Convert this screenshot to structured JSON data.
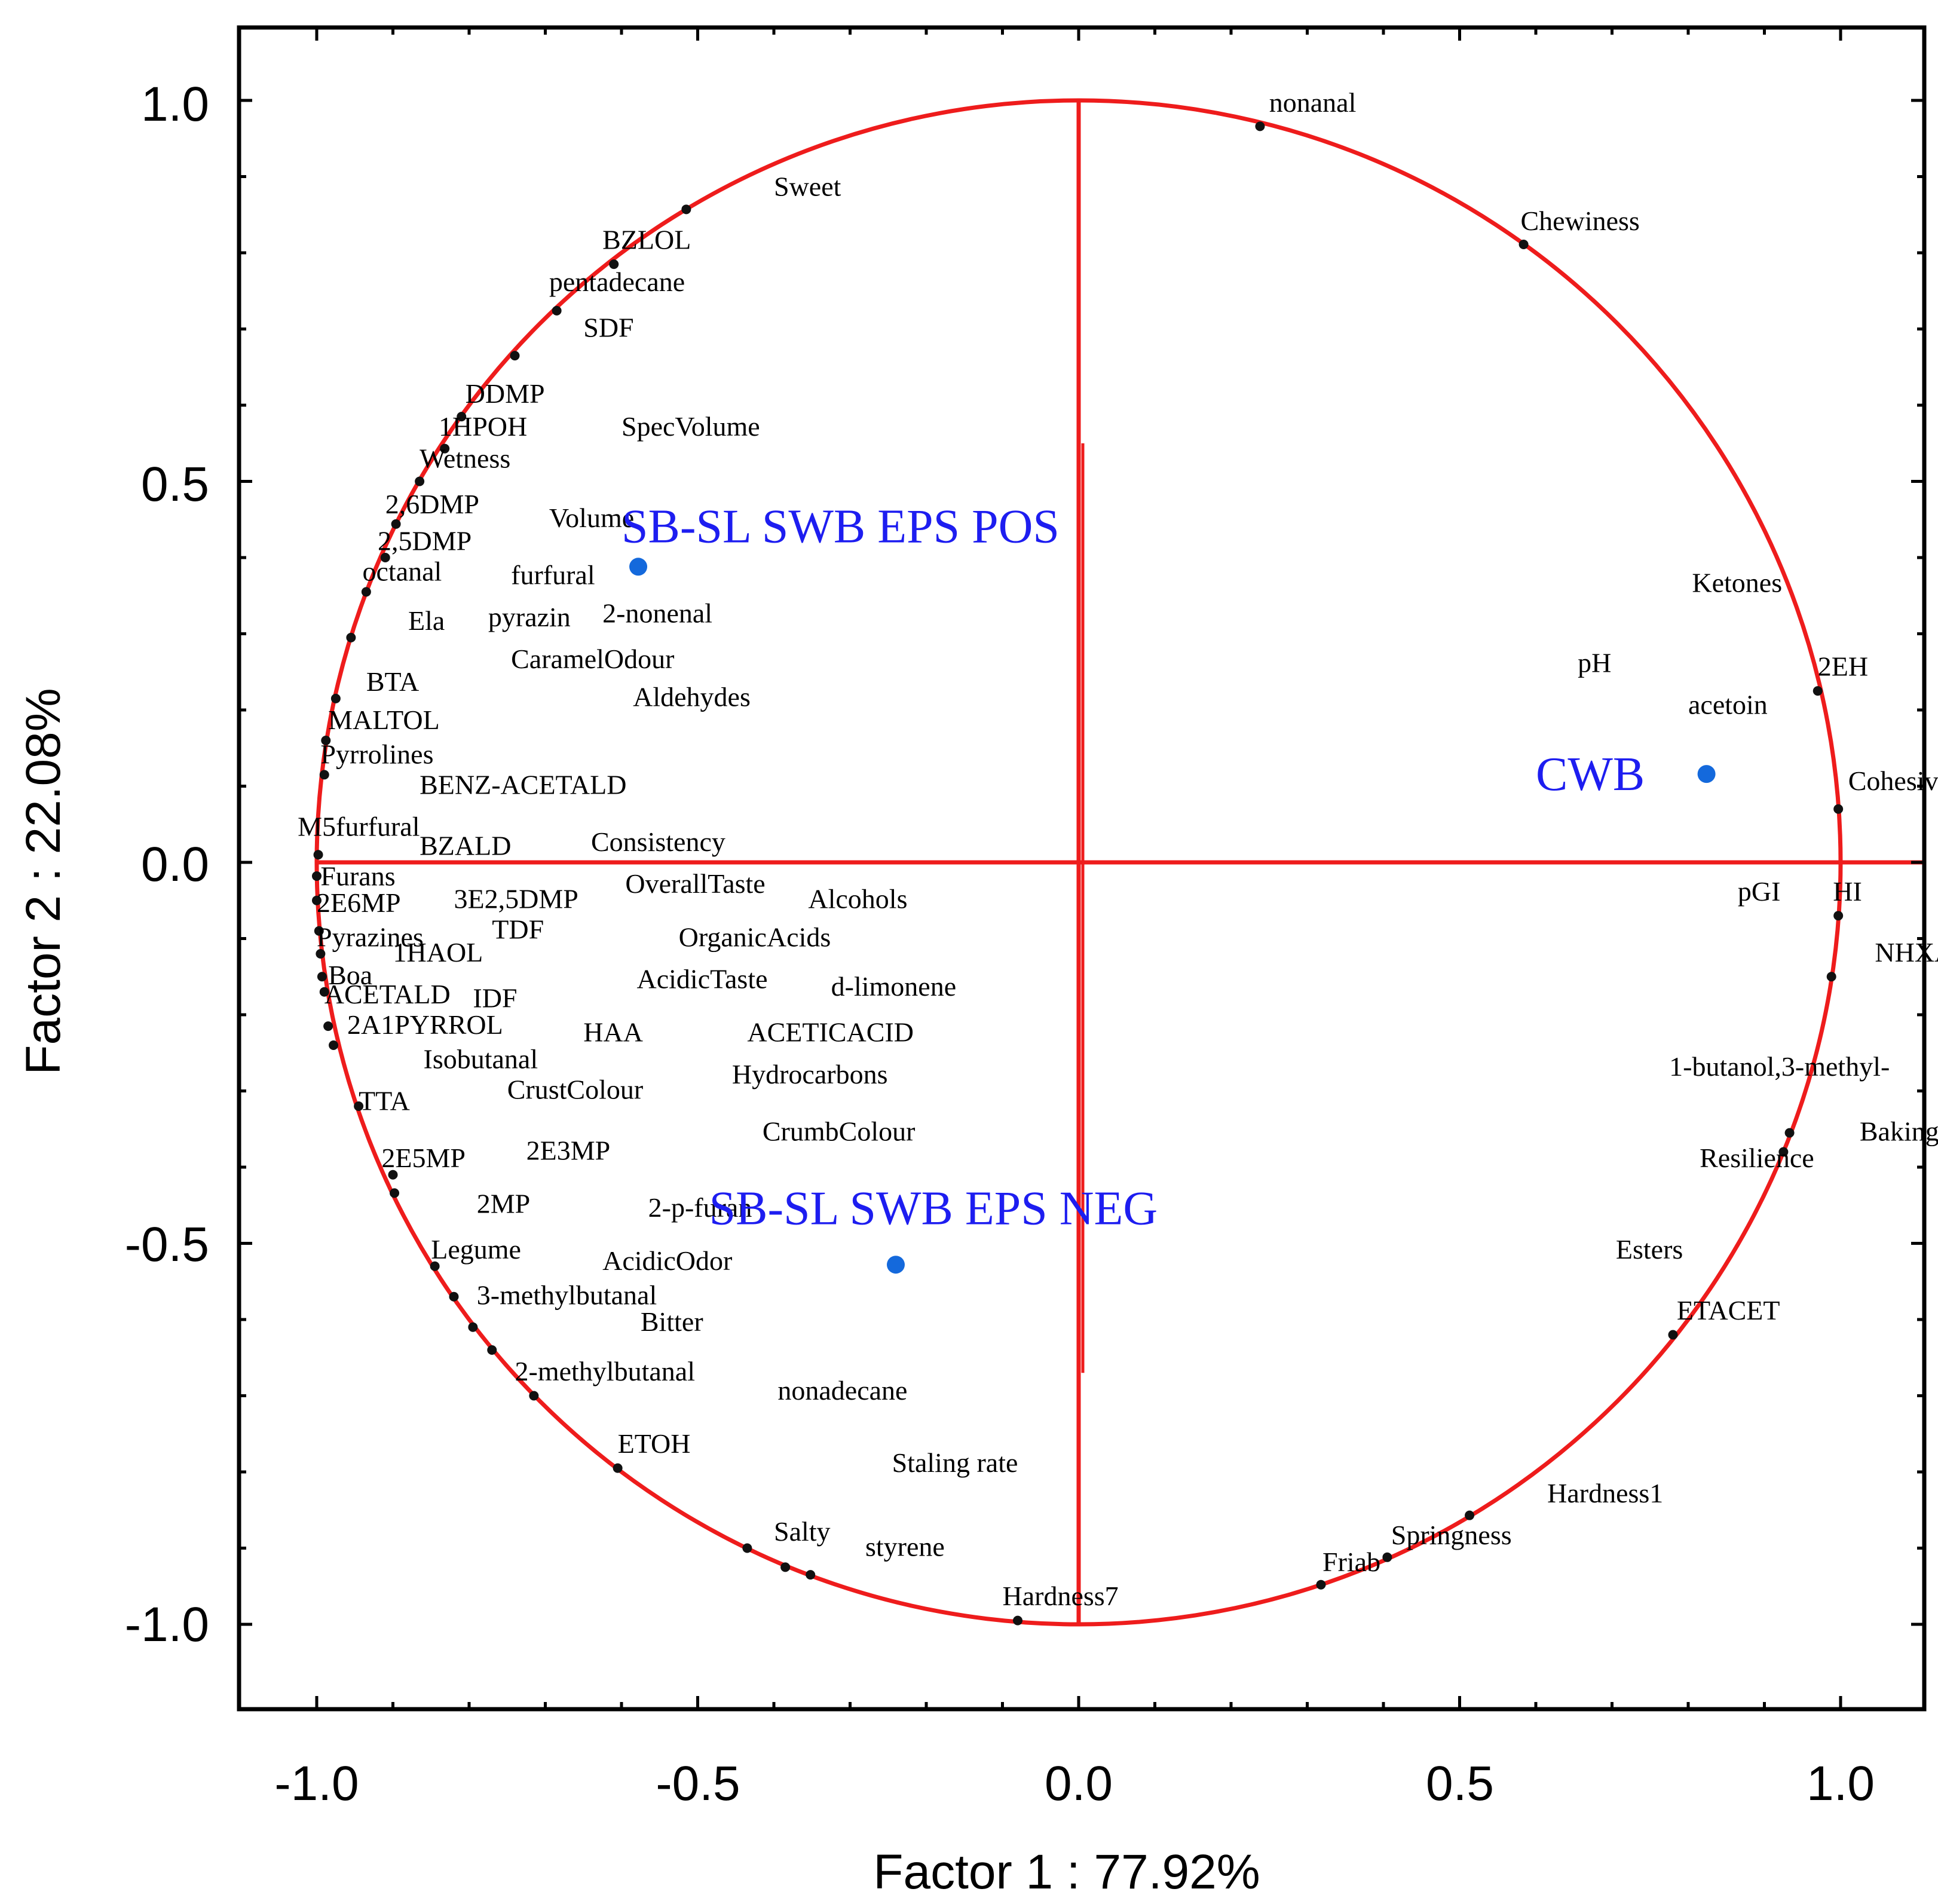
{
  "chart_data": {
    "type": "scatter",
    "title": "",
    "xlabel": "Factor 1 : 77.92%",
    "ylabel": "Factor 2 : 22.08%",
    "xlim": [
      -1.1,
      1.1
    ],
    "ylim": [
      -1.1,
      1.1
    ],
    "x_ticks": [
      "-1.0",
      "-0.5",
      "0.0",
      "0.5",
      "1.0"
    ],
    "y_ticks": [
      "1.0",
      "0.5",
      "0.0",
      "-0.5",
      "-1.0"
    ],
    "colors": {
      "circle": "#ee1c1c",
      "group": "#1469dc",
      "frame": "#000000",
      "text": "#000000",
      "group_text": "#1d1df0"
    },
    "variables": [
      {
        "name": "nonanal",
        "x": 0.238,
        "y": 0.966,
        "lx": 0.25,
        "ly": 0.985
      },
      {
        "name": "Sweet",
        "x": -0.515,
        "y": 0.857,
        "lx": -0.4,
        "ly": 0.875
      },
      {
        "name": "Chewiness",
        "x": 0.584,
        "y": 0.811,
        "lx": 0.58,
        "ly": 0.83
      },
      {
        "name": "BZLOL",
        "x": -0.61,
        "y": 0.785,
        "lx": -0.625,
        "ly": 0.805
      },
      {
        "name": "pentadecane",
        "x": -0.685,
        "y": 0.724,
        "lx": -0.695,
        "ly": 0.75
      },
      {
        "name": "SDF",
        "x": -0.74,
        "y": 0.665,
        "lx": -0.65,
        "ly": 0.69
      },
      {
        "name": "DDMP",
        "x": -0.81,
        "y": 0.585,
        "lx": -0.805,
        "ly": 0.603
      },
      {
        "name": "1HPOH",
        "x": -0.832,
        "y": 0.543,
        "lx": -0.84,
        "ly": 0.56
      },
      {
        "name": "SpecVolume",
        "x": null,
        "y": null,
        "lx": -0.6,
        "ly": 0.56
      },
      {
        "name": "Wetness",
        "x": -0.865,
        "y": 0.5,
        "lx": -0.865,
        "ly": 0.518
      },
      {
        "name": "2,6DMP",
        "x": -0.896,
        "y": 0.444,
        "lx": -0.91,
        "ly": 0.458
      },
      {
        "name": "Volume",
        "x": null,
        "y": null,
        "lx": -0.695,
        "ly": 0.44
      },
      {
        "name": "2,5DMP",
        "x": -0.91,
        "y": 0.4,
        "lx": -0.92,
        "ly": 0.41
      },
      {
        "name": "octanal",
        "x": -0.935,
        "y": 0.355,
        "lx": -0.94,
        "ly": 0.37
      },
      {
        "name": "furfural",
        "x": null,
        "y": null,
        "lx": -0.745,
        "ly": 0.365
      },
      {
        "name": "Ela",
        "x": -0.955,
        "y": 0.295,
        "lx": -0.88,
        "ly": 0.305
      },
      {
        "name": "pyrazin",
        "x": null,
        "y": null,
        "lx": -0.775,
        "ly": 0.31
      },
      {
        "name": "2-nonenal",
        "x": null,
        "y": null,
        "lx": -0.625,
        "ly": 0.315
      },
      {
        "name": "CaramelOdour",
        "x": null,
        "y": null,
        "lx": -0.745,
        "ly": 0.255
      },
      {
        "name": "BTA",
        "x": -0.975,
        "y": 0.215,
        "lx": -0.935,
        "ly": 0.225
      },
      {
        "name": "Aldehydes",
        "x": null,
        "y": null,
        "lx": -0.585,
        "ly": 0.205
      },
      {
        "name": "MALTOL",
        "x": -0.988,
        "y": 0.16,
        "lx": -0.985,
        "ly": 0.175
      },
      {
        "name": "Pyrrolines",
        "x": -0.99,
        "y": 0.115,
        "lx": -0.995,
        "ly": 0.13
      },
      {
        "name": "BENZ-ACETALD",
        "x": null,
        "y": null,
        "lx": -0.865,
        "ly": 0.09
      },
      {
        "name": "M5furfural",
        "x": -0.998,
        "y": 0.01,
        "lx": -1.025,
        "ly": 0.035
      },
      {
        "name": "BZALD",
        "x": null,
        "y": null,
        "lx": -0.865,
        "ly": 0.01
      },
      {
        "name": "Consistency",
        "x": null,
        "y": null,
        "lx": -0.64,
        "ly": 0.015
      },
      {
        "name": "Furans",
        "x": -1.0,
        "y": -0.018,
        "lx": -0.995,
        "ly": -0.03
      },
      {
        "name": "OverallTaste",
        "x": null,
        "y": null,
        "lx": -0.595,
        "ly": -0.04
      },
      {
        "name": "2E6MP",
        "x": -1.0,
        "y": -0.05,
        "lx": -1.0,
        "ly": -0.065
      },
      {
        "name": "3E2,5DMP",
        "x": null,
        "y": null,
        "lx": -0.82,
        "ly": -0.06
      },
      {
        "name": "Alcohols",
        "x": null,
        "y": null,
        "lx": -0.355,
        "ly": -0.06
      },
      {
        "name": "TDF",
        "x": null,
        "y": null,
        "lx": -0.77,
        "ly": -0.1
      },
      {
        "name": "Pyrazines",
        "x": -0.997,
        "y": -0.09,
        "lx": -1.0,
        "ly": -0.11
      },
      {
        "name": "OrganicAcids",
        "x": null,
        "y": null,
        "lx": -0.525,
        "ly": -0.11
      },
      {
        "name": "1HAOL",
        "x": -0.995,
        "y": -0.12,
        "lx": -0.9,
        "ly": -0.13
      },
      {
        "name": "Boa",
        "x": -0.993,
        "y": -0.15,
        "lx": -0.985,
        "ly": -0.16
      },
      {
        "name": "AcidicTaste",
        "x": null,
        "y": null,
        "lx": -0.58,
        "ly": -0.165
      },
      {
        "name": "ACETALD",
        "x": -0.99,
        "y": -0.17,
        "lx": -0.99,
        "ly": -0.185
      },
      {
        "name": "IDF",
        "x": null,
        "y": null,
        "lx": -0.795,
        "ly": -0.19
      },
      {
        "name": "d-limonene",
        "x": null,
        "y": null,
        "lx": -0.325,
        "ly": -0.175
      },
      {
        "name": "2A1PYRROL",
        "x": -0.985,
        "y": -0.215,
        "lx": -0.96,
        "ly": -0.225
      },
      {
        "name": "HAA",
        "x": null,
        "y": null,
        "lx": -0.65,
        "ly": -0.235
      },
      {
        "name": "ACETICACID",
        "x": null,
        "y": null,
        "lx": -0.435,
        "ly": -0.235
      },
      {
        "name": "Isobutanal",
        "x": -0.978,
        "y": -0.24,
        "lx": -0.86,
        "ly": -0.27
      },
      {
        "name": "Hydrocarbons",
        "x": null,
        "y": null,
        "lx": -0.455,
        "ly": -0.29
      },
      {
        "name": "CrustColour",
        "x": null,
        "y": null,
        "lx": -0.75,
        "ly": -0.31
      },
      {
        "name": "TTA",
        "x": -0.945,
        "y": -0.32,
        "lx": -0.945,
        "ly": -0.325
      },
      {
        "name": "CrumbColour",
        "x": null,
        "y": null,
        "lx": -0.415,
        "ly": -0.365
      },
      {
        "name": "2E3MP",
        "x": null,
        "y": null,
        "lx": -0.725,
        "ly": -0.39
      },
      {
        "name": "2E5MP",
        "x": -0.9,
        "y": -0.41,
        "lx": -0.915,
        "ly": -0.4
      },
      {
        "name": "2MP",
        "x": -0.898,
        "y": -0.434,
        "lx": -0.79,
        "ly": -0.46
      },
      {
        "name": "2-p-furan",
        "x": null,
        "y": null,
        "lx": -0.565,
        "ly": -0.465
      },
      {
        "name": "Legume",
        "x": -0.845,
        "y": -0.53,
        "lx": -0.85,
        "ly": -0.52
      },
      {
        "name": "AcidicOdor",
        "x": null,
        "y": null,
        "lx": -0.625,
        "ly": -0.535
      },
      {
        "name": "3-methylbutanal",
        "x": -0.82,
        "y": -0.57,
        "lx": -0.79,
        "ly": -0.58
      },
      {
        "name": "Bitter",
        "x": -0.795,
        "y": -0.61,
        "lx": -0.575,
        "ly": -0.615
      },
      {
        "name": "2-methylbutanal",
        "x": -0.77,
        "y": -0.64,
        "lx": -0.74,
        "ly": -0.68
      },
      {
        "name": "nonadecane",
        "x": -0.715,
        "y": -0.7,
        "lx": -0.395,
        "ly": -0.705
      },
      {
        "name": "ETOH",
        "x": -0.605,
        "y": -0.795,
        "lx": -0.605,
        "ly": -0.775
      },
      {
        "name": "Staling rate",
        "x": null,
        "y": null,
        "lx": -0.245,
        "ly": -0.8
      },
      {
        "name": "Salty",
        "x": -0.435,
        "y": -0.9,
        "lx": -0.4,
        "ly": -0.89
      },
      {
        "name": "styrene",
        "x": -0.385,
        "y": -0.925,
        "lx": -0.28,
        "ly": -0.91
      },
      {
        "name": "",
        "x": -0.352,
        "y": -0.935,
        "lx": null,
        "ly": null
      },
      {
        "name": "Hardness7",
        "x": -0.08,
        "y": -0.995,
        "lx": -0.1,
        "ly": -0.975
      },
      {
        "name": "Friab",
        "x": 0.318,
        "y": -0.948,
        "lx": 0.32,
        "ly": -0.93
      },
      {
        "name": "Springness",
        "x": 0.405,
        "y": -0.912,
        "lx": 0.41,
        "ly": -0.895
      },
      {
        "name": "Hardness1",
        "x": 0.513,
        "y": -0.857,
        "lx": 0.615,
        "ly": -0.84
      },
      {
        "name": "ETACET",
        "x": 0.78,
        "y": -0.62,
        "lx": 0.785,
        "ly": -0.6
      },
      {
        "name": "Esters",
        "x": null,
        "y": null,
        "lx": 0.705,
        "ly": -0.52
      },
      {
        "name": "Resilience",
        "x": 0.925,
        "y": -0.38,
        "lx": 0.815,
        "ly": -0.4
      },
      {
        "name": "Baking loss",
        "x": 0.933,
        "y": -0.355,
        "lx": 1.025,
        "ly": -0.365
      },
      {
        "name": "1-butanol,3-methyl-",
        "x": null,
        "y": null,
        "lx": 0.775,
        "ly": -0.28
      },
      {
        "name": "NHXALD",
        "x": 0.988,
        "y": -0.15,
        "lx": 1.045,
        "ly": -0.13
      },
      {
        "name": "pGI",
        "x": null,
        "y": null,
        "lx": 0.865,
        "ly": -0.05
      },
      {
        "name": "HI",
        "x": 0.997,
        "y": -0.07,
        "lx": 0.99,
        "ly": -0.05
      },
      {
        "name": "Cohesivness",
        "x": 0.997,
        "y": 0.07,
        "lx": 1.01,
        "ly": 0.095
      },
      {
        "name": "acetoin",
        "x": null,
        "y": null,
        "lx": 0.8,
        "ly": 0.195
      },
      {
        "name": "2EH",
        "x": 0.97,
        "y": 0.225,
        "lx": 0.97,
        "ly": 0.245
      },
      {
        "name": "pH",
        "x": null,
        "y": null,
        "lx": 0.655,
        "ly": 0.25
      },
      {
        "name": "Ketones",
        "x": null,
        "y": null,
        "lx": 0.805,
        "ly": 0.355
      }
    ],
    "groups": [
      {
        "name": "SB-SL SWB EPS POS",
        "x": -0.578,
        "y": 0.388,
        "lx": -0.6,
        "ly": 0.42
      },
      {
        "name": "SB-SL SWB EPS NEG",
        "x": -0.24,
        "y": -0.528,
        "lx": -0.485,
        "ly": -0.475
      },
      {
        "name": "CWB",
        "x": 0.824,
        "y": 0.116,
        "lx": 0.6,
        "ly": 0.095
      }
    ]
  }
}
